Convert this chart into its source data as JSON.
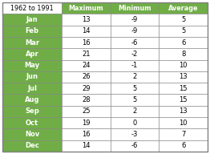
{
  "title": "1962 to 1991",
  "col_headers": [
    "Maximum",
    "Minimum",
    "Average"
  ],
  "months": [
    "Jan",
    "Feb",
    "Mar",
    "Apr",
    "May",
    "Jun",
    "Jul",
    "Aug",
    "Sep",
    "Oct",
    "Nov",
    "Dec"
  ],
  "maximum": [
    13,
    14,
    16,
    21,
    24,
    26,
    29,
    28,
    25,
    19,
    16,
    14
  ],
  "minimum": [
    -9,
    -9,
    -6,
    -2,
    -1,
    2,
    5,
    5,
    2,
    0,
    -3,
    -6
  ],
  "average": [
    5,
    5,
    6,
    8,
    10,
    13,
    15,
    15,
    13,
    10,
    7,
    6
  ],
  "green_cell": "#70AD47",
  "white_bg": "#FFFFFF",
  "border_color": "#808080",
  "text_white": "#FFFFFF",
  "text_dark": "#000000",
  "outer_border": "#808080"
}
